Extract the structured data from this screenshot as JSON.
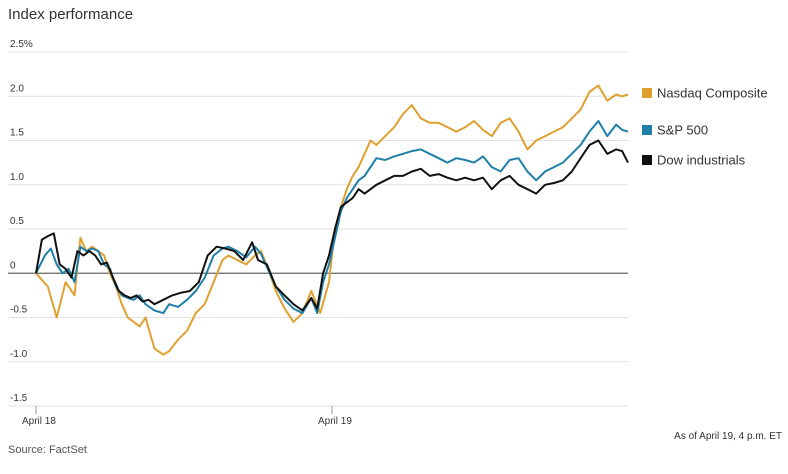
{
  "title": "Index performance",
  "source": "Source: FactSet",
  "note": "As of April 19, 4 p.m. ET",
  "chart_data": {
    "type": "line",
    "title": "Index performance",
    "xlabel": "",
    "ylabel": "",
    "y_tick_labels": [
      "2.5%",
      "2.0",
      "1.5",
      "1.0",
      "0.5",
      "0",
      "-0.5",
      "-1.0",
      "-1.5"
    ],
    "y_tick_values": [
      2.5,
      2.0,
      1.5,
      1.0,
      0.5,
      0,
      -0.5,
      -1.0,
      -1.5
    ],
    "ylim": [
      -1.5,
      2.5
    ],
    "x_tick_labels": [
      "April 18",
      "April 19"
    ],
    "x_tick_positions": [
      0,
      100
    ],
    "xlim": [
      0,
      200
    ],
    "grid": true,
    "legend_position": "right",
    "series": [
      {
        "name": "Nasdaq Composite",
        "color": "#E0A030",
        "x": [
          0,
          4,
          7,
          10,
          13,
          15,
          17,
          19,
          21,
          23,
          25,
          27,
          29,
          31,
          33,
          35,
          37,
          40,
          43,
          45,
          48,
          51,
          54,
          57,
          60,
          63,
          65,
          68,
          71,
          74,
          76,
          79,
          81,
          84,
          87,
          90,
          93,
          96,
          99,
          101,
          103,
          105,
          107,
          109,
          111,
          113,
          115,
          118,
          121,
          124,
          127,
          130,
          133,
          136,
          139,
          142,
          145,
          148,
          151,
          154,
          157,
          160,
          163,
          166,
          169,
          172,
          175,
          178,
          181,
          184,
          187,
          190,
          193,
          196,
          198,
          200
        ],
        "y": [
          0.0,
          -0.15,
          -0.5,
          -0.1,
          -0.25,
          0.4,
          0.25,
          0.3,
          0.25,
          0.2,
          0.0,
          -0.15,
          -0.35,
          -0.5,
          -0.55,
          -0.6,
          -0.5,
          -0.85,
          -0.92,
          -0.88,
          -0.75,
          -0.65,
          -0.45,
          -0.35,
          -0.1,
          0.15,
          0.2,
          0.15,
          0.1,
          0.2,
          0.25,
          0.0,
          -0.2,
          -0.4,
          -0.55,
          -0.45,
          -0.2,
          -0.45,
          -0.1,
          0.5,
          0.75,
          0.95,
          1.1,
          1.2,
          1.35,
          1.5,
          1.45,
          1.55,
          1.65,
          1.8,
          1.9,
          1.75,
          1.7,
          1.7,
          1.65,
          1.6,
          1.65,
          1.72,
          1.62,
          1.55,
          1.7,
          1.75,
          1.6,
          1.4,
          1.5,
          1.55,
          1.6,
          1.65,
          1.75,
          1.85,
          2.05,
          2.12,
          1.95,
          2.02,
          2.0,
          2.02
        ],
        "values": [
          0.0,
          -0.15,
          -0.5,
          -0.1,
          -0.25,
          0.4,
          0.25,
          0.3,
          0.25,
          0.2,
          0.0,
          -0.15,
          -0.35,
          -0.5,
          -0.55,
          -0.6,
          -0.5,
          -0.85,
          -0.92,
          -0.88,
          -0.75,
          -0.65,
          -0.45,
          -0.35,
          -0.1,
          0.15,
          0.2,
          0.15,
          0.1,
          0.2,
          0.25,
          0.0,
          -0.2,
          -0.4,
          -0.55,
          -0.45,
          -0.2,
          -0.45,
          -0.1,
          0.5,
          0.75,
          0.95,
          1.1,
          1.2,
          1.35,
          1.5,
          1.45,
          1.55,
          1.65,
          1.8,
          1.9,
          1.75,
          1.7,
          1.7,
          1.65,
          1.6,
          1.65,
          1.72,
          1.62,
          1.55,
          1.7,
          1.75,
          1.6,
          1.4,
          1.5,
          1.55,
          1.6,
          1.65,
          1.75,
          1.85,
          2.05,
          2.12,
          1.95,
          2.02,
          2.0,
          2.02
        ]
      },
      {
        "name": "S&P 500",
        "color": "#1F7FA8",
        "x": [
          0,
          3,
          5,
          7,
          9,
          11,
          13,
          15,
          17,
          19,
          21,
          23,
          25,
          27,
          29,
          31,
          33,
          35,
          37,
          40,
          43,
          45,
          48,
          51,
          54,
          57,
          60,
          63,
          65,
          68,
          71,
          74,
          76,
          79,
          81,
          84,
          87,
          90,
          93,
          95,
          97,
          99,
          101,
          103,
          105,
          107,
          109,
          111,
          113,
          115,
          118,
          121,
          124,
          127,
          130,
          133,
          136,
          139,
          142,
          145,
          148,
          151,
          154,
          157,
          160,
          163,
          166,
          169,
          172,
          175,
          178,
          181,
          184,
          187,
          190,
          193,
          196,
          198,
          200
        ],
        "y": [
          0.0,
          0.2,
          0.28,
          0.1,
          0.0,
          0.05,
          -0.1,
          0.3,
          0.25,
          0.28,
          0.25,
          0.1,
          0.05,
          -0.15,
          -0.25,
          -0.28,
          -0.3,
          -0.25,
          -0.35,
          -0.42,
          -0.45,
          -0.35,
          -0.38,
          -0.3,
          -0.2,
          -0.05,
          0.2,
          0.28,
          0.3,
          0.25,
          0.18,
          0.3,
          0.22,
          0.0,
          -0.15,
          -0.3,
          -0.4,
          -0.45,
          -0.28,
          -0.45,
          -0.1,
          0.1,
          0.4,
          0.7,
          0.85,
          0.95,
          1.05,
          1.1,
          1.2,
          1.3,
          1.28,
          1.32,
          1.35,
          1.38,
          1.4,
          1.35,
          1.3,
          1.25,
          1.3,
          1.28,
          1.25,
          1.32,
          1.2,
          1.15,
          1.28,
          1.3,
          1.15,
          1.05,
          1.15,
          1.2,
          1.25,
          1.35,
          1.45,
          1.6,
          1.72,
          1.55,
          1.68,
          1.62,
          1.6
        ],
        "values": [
          0.0,
          0.2,
          0.28,
          0.1,
          0.0,
          0.05,
          -0.1,
          0.3,
          0.25,
          0.28,
          0.25,
          0.1,
          0.05,
          -0.15,
          -0.25,
          -0.28,
          -0.3,
          -0.25,
          -0.35,
          -0.42,
          -0.45,
          -0.35,
          -0.38,
          -0.3,
          -0.2,
          -0.05,
          0.2,
          0.28,
          0.3,
          0.25,
          0.18,
          0.3,
          0.22,
          0.0,
          -0.15,
          -0.3,
          -0.4,
          -0.45,
          -0.28,
          -0.45,
          -0.1,
          0.1,
          0.4,
          0.7,
          0.85,
          0.95,
          1.05,
          1.1,
          1.2,
          1.3,
          1.28,
          1.32,
          1.35,
          1.38,
          1.4,
          1.35,
          1.3,
          1.25,
          1.3,
          1.28,
          1.25,
          1.32,
          1.2,
          1.15,
          1.28,
          1.3,
          1.15,
          1.05,
          1.15,
          1.2,
          1.25,
          1.35,
          1.45,
          1.6,
          1.72,
          1.55,
          1.68,
          1.62,
          1.6
        ]
      },
      {
        "name": "Dow industrials",
        "color": "#111111",
        "x": [
          0,
          2,
          4,
          6,
          8,
          10,
          12,
          14,
          16,
          18,
          20,
          22,
          24,
          26,
          28,
          30,
          32,
          34,
          36,
          38,
          40,
          43,
          46,
          49,
          52,
          55,
          58,
          61,
          64,
          67,
          70,
          73,
          75,
          78,
          81,
          84,
          87,
          90,
          93,
          95,
          97,
          99,
          101,
          103,
          105,
          107,
          109,
          111,
          113,
          115,
          118,
          121,
          124,
          127,
          130,
          133,
          136,
          139,
          142,
          145,
          148,
          151,
          154,
          157,
          160,
          163,
          166,
          169,
          172,
          175,
          178,
          181,
          184,
          187,
          190,
          193,
          196,
          198,
          200
        ],
        "y": [
          0.0,
          0.38,
          0.42,
          0.45,
          0.1,
          0.05,
          -0.05,
          0.25,
          0.2,
          0.25,
          0.2,
          0.1,
          0.12,
          -0.05,
          -0.2,
          -0.25,
          -0.28,
          -0.25,
          -0.32,
          -0.3,
          -0.35,
          -0.3,
          -0.25,
          -0.22,
          -0.2,
          -0.1,
          0.2,
          0.3,
          0.28,
          0.25,
          0.15,
          0.35,
          0.15,
          0.1,
          -0.15,
          -0.25,
          -0.35,
          -0.42,
          -0.28,
          -0.4,
          0.0,
          0.2,
          0.5,
          0.75,
          0.8,
          0.85,
          0.95,
          0.9,
          0.95,
          1.0,
          1.05,
          1.1,
          1.1,
          1.15,
          1.18,
          1.1,
          1.12,
          1.08,
          1.05,
          1.08,
          1.05,
          1.08,
          0.95,
          1.05,
          1.1,
          1.0,
          0.95,
          0.9,
          1.0,
          1.02,
          1.05,
          1.15,
          1.3,
          1.45,
          1.5,
          1.35,
          1.4,
          1.38,
          1.25
        ],
        "values": [
          0.0,
          0.38,
          0.42,
          0.45,
          0.1,
          0.05,
          -0.05,
          0.25,
          0.2,
          0.25,
          0.2,
          0.1,
          0.12,
          -0.05,
          -0.2,
          -0.25,
          -0.28,
          -0.25,
          -0.32,
          -0.3,
          -0.35,
          -0.3,
          -0.25,
          -0.22,
          -0.2,
          -0.1,
          0.2,
          0.3,
          0.28,
          0.25,
          0.15,
          0.35,
          0.15,
          0.1,
          -0.15,
          -0.25,
          -0.35,
          -0.42,
          -0.28,
          -0.4,
          0.0,
          0.2,
          0.5,
          0.75,
          0.8,
          0.85,
          0.95,
          0.9,
          0.95,
          1.0,
          1.05,
          1.1,
          1.1,
          1.15,
          1.18,
          1.1,
          1.12,
          1.08,
          1.05,
          1.08,
          1.05,
          1.08,
          0.95,
          1.05,
          1.1,
          1.0,
          0.95,
          0.9,
          1.0,
          1.02,
          1.05,
          1.15,
          1.3,
          1.45,
          1.5,
          1.35,
          1.4,
          1.38,
          1.25
        ]
      }
    ]
  }
}
